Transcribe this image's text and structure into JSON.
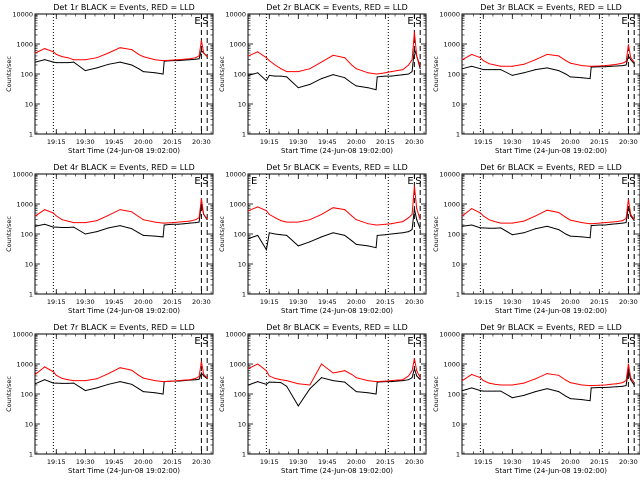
{
  "figure": {
    "ylabel": "Counts/sec",
    "xlabel": "Start Time (24-Jun-08 19:02:00)",
    "x_ticks": [
      "19:15",
      "19:30",
      "19:45",
      "20:00",
      "20:15",
      "20:30"
    ],
    "y_ticks": [
      "1",
      "10",
      "100",
      "1000",
      "10000"
    ],
    "colors": {
      "events": "#000000",
      "lld": "#ff0000",
      "axes": "#000000",
      "background": "#ffffff"
    }
  },
  "chart_data": [
    {
      "type": "line",
      "title": "Det 1r BLACK = Events, RED = LLD",
      "flags": [
        {
          "text": "E"
        },
        {
          "text": "S"
        }
      ],
      "xlim": [
        19.0667,
        20.6
      ],
      "ylim": [
        1,
        10000
      ],
      "yscale": "log",
      "vlines_dotted": [
        19.225,
        20.275
      ],
      "vlines_dashed": [
        20.5,
        20.55
      ],
      "x": [
        19.07,
        19.15,
        19.225,
        19.25,
        19.3,
        19.35,
        19.4,
        19.5,
        19.6,
        19.7,
        19.8,
        19.9,
        19.96,
        20.0,
        20.1,
        20.17,
        20.18,
        20.25,
        20.3,
        20.35,
        20.4,
        20.45,
        20.48,
        20.5,
        20.52,
        20.55
      ],
      "series": [
        {
          "name": "Events",
          "values": [
            250,
            300,
            250,
            240,
            240,
            240,
            250,
            130,
            160,
            210,
            250,
            200,
            150,
            120,
            110,
            100,
            270,
            280,
            280,
            290,
            300,
            310,
            320,
            600,
            500,
            380
          ]
        },
        {
          "name": "LLD",
          "values": [
            500,
            700,
            550,
            450,
            380,
            350,
            300,
            300,
            350,
            500,
            750,
            650,
            450,
            380,
            300,
            280,
            280,
            290,
            300,
            310,
            320,
            350,
            400,
            1300,
            500,
            380
          ]
        }
      ]
    },
    {
      "type": "line",
      "title": "Det 2r BLACK = Events, RED = LLD",
      "flags": [
        {
          "text": "E"
        },
        {
          "text": "S"
        }
      ],
      "xlim": [
        19.0667,
        20.6
      ],
      "ylim": [
        1,
        10000
      ],
      "yscale": "log",
      "vlines_dotted": [
        19.225,
        20.275
      ],
      "vlines_dashed": [
        20.5,
        20.55
      ],
      "x": [
        19.07,
        19.15,
        19.225,
        19.25,
        19.3,
        19.35,
        19.4,
        19.5,
        19.6,
        19.7,
        19.8,
        19.9,
        19.96,
        20.0,
        20.1,
        20.17,
        20.18,
        20.25,
        20.3,
        20.35,
        20.4,
        20.45,
        20.48,
        20.5,
        20.52,
        20.55
      ],
      "series": [
        {
          "name": "Events",
          "values": [
            90,
            110,
            60,
            90,
            85,
            85,
            80,
            35,
            45,
            70,
            95,
            75,
            50,
            40,
            35,
            30,
            80,
            85,
            85,
            90,
            95,
            100,
            120,
            650,
            400,
            150
          ]
        },
        {
          "name": "LLD",
          "values": [
            400,
            550,
            350,
            280,
            200,
            150,
            120,
            120,
            150,
            250,
            420,
            350,
            200,
            150,
            110,
            100,
            100,
            110,
            120,
            130,
            140,
            200,
            300,
            2500,
            400,
            180
          ]
        }
      ]
    },
    {
      "type": "line",
      "title": "Det 3r BLACK = Events, RED = LLD",
      "flags": [
        {
          "text": "E"
        },
        {
          "text": "S"
        }
      ],
      "xlim": [
        19.0667,
        20.6
      ],
      "ylim": [
        1,
        10000
      ],
      "yscale": "log",
      "vlines_dotted": [
        19.225,
        20.275
      ],
      "vlines_dashed": [
        20.5,
        20.55
      ],
      "x": [
        19.07,
        19.15,
        19.225,
        19.25,
        19.3,
        19.35,
        19.4,
        19.5,
        19.6,
        19.7,
        19.8,
        19.9,
        19.96,
        20.0,
        20.1,
        20.17,
        20.18,
        20.25,
        20.3,
        20.35,
        20.4,
        20.45,
        20.48,
        20.5,
        20.52,
        20.55
      ],
      "series": [
        {
          "name": "Events",
          "values": [
            150,
            180,
            150,
            140,
            140,
            140,
            140,
            90,
            110,
            140,
            160,
            130,
            100,
            80,
            75,
            70,
            170,
            175,
            175,
            180,
            185,
            190,
            200,
            400,
            300,
            220
          ]
        },
        {
          "name": "LLD",
          "values": [
            300,
            450,
            350,
            280,
            220,
            200,
            180,
            180,
            210,
            300,
            450,
            400,
            280,
            230,
            190,
            180,
            180,
            185,
            190,
            200,
            210,
            230,
            260,
            950,
            350,
            250
          ]
        }
      ]
    },
    {
      "type": "line",
      "title": "Det 4r BLACK = Events, RED = LLD",
      "flags": [
        {
          "text": "E"
        },
        {
          "text": "S"
        }
      ],
      "xlim": [
        19.0667,
        20.6
      ],
      "ylim": [
        1,
        10000
      ],
      "yscale": "log",
      "vlines_dotted": [
        19.225,
        20.275
      ],
      "vlines_dashed": [
        20.5,
        20.55
      ],
      "x": [
        19.07,
        19.15,
        19.225,
        19.25,
        19.3,
        19.35,
        19.4,
        19.5,
        19.6,
        19.7,
        19.8,
        19.9,
        19.96,
        20.0,
        20.1,
        20.17,
        20.18,
        20.25,
        20.3,
        20.35,
        20.4,
        20.45,
        20.48,
        20.5,
        20.52,
        20.55
      ],
      "series": [
        {
          "name": "Events",
          "values": [
            180,
            210,
            170,
            170,
            165,
            165,
            170,
            100,
            120,
            160,
            190,
            150,
            110,
            90,
            85,
            80,
            200,
            210,
            210,
            220,
            230,
            240,
            250,
            1000,
            450,
            300
          ]
        },
        {
          "name": "LLD",
          "values": [
            400,
            650,
            500,
            400,
            300,
            270,
            240,
            240,
            280,
            420,
            650,
            550,
            380,
            300,
            250,
            230,
            230,
            240,
            250,
            260,
            270,
            300,
            350,
            1500,
            450,
            320
          ]
        }
      ]
    },
    {
      "type": "line",
      "title": "Det 5r BLACK = Events, RED = LLD",
      "flags": [
        {
          "text": "E"
        },
        {
          "text": "E"
        },
        {
          "text": "S"
        }
      ],
      "xlim": [
        19.0667,
        20.6
      ],
      "ylim": [
        1,
        10000
      ],
      "yscale": "log",
      "vlines_dotted": [
        19.225,
        20.275
      ],
      "vlines_dashed": [
        20.5,
        20.55
      ],
      "x": [
        19.07,
        19.15,
        19.225,
        19.25,
        19.3,
        19.35,
        19.4,
        19.5,
        19.6,
        19.7,
        19.8,
        19.9,
        19.96,
        20.0,
        20.1,
        20.17,
        20.18,
        20.25,
        20.3,
        20.35,
        20.4,
        20.45,
        20.48,
        20.5,
        20.52,
        20.55
      ],
      "series": [
        {
          "name": "Events",
          "values": [
            70,
            90,
            30,
            110,
            100,
            95,
            90,
            40,
            55,
            80,
            110,
            90,
            60,
            45,
            40,
            35,
            90,
            95,
            100,
            105,
            110,
            120,
            140,
            700,
            300,
            150
          ]
        },
        {
          "name": "LLD",
          "values": [
            600,
            800,
            600,
            450,
            350,
            280,
            250,
            250,
            300,
            450,
            750,
            650,
            400,
            300,
            220,
            200,
            200,
            210,
            220,
            240,
            260,
            350,
            450,
            4000,
            700,
            300
          ]
        }
      ]
    },
    {
      "type": "line",
      "title": "Det 6r BLACK = Events, RED = LLD",
      "flags": [
        {
          "text": "E"
        },
        {
          "text": "S"
        }
      ],
      "xlim": [
        19.0667,
        20.6
      ],
      "ylim": [
        1,
        10000
      ],
      "yscale": "log",
      "vlines_dotted": [
        19.225,
        20.275
      ],
      "vlines_dashed": [
        20.5,
        20.55
      ],
      "x": [
        19.07,
        19.15,
        19.225,
        19.25,
        19.3,
        19.35,
        19.4,
        19.5,
        19.6,
        19.7,
        19.8,
        19.9,
        19.96,
        20.0,
        20.1,
        20.17,
        20.18,
        20.25,
        20.3,
        20.35,
        20.4,
        20.45,
        20.48,
        20.5,
        20.52,
        20.55
      ],
      "series": [
        {
          "name": "Events",
          "values": [
            180,
            200,
            160,
            160,
            155,
            155,
            160,
            95,
            110,
            150,
            180,
            140,
            100,
            85,
            80,
            75,
            190,
            200,
            200,
            210,
            220,
            230,
            240,
            800,
            400,
            280
          ]
        },
        {
          "name": "LLD",
          "values": [
            400,
            700,
            500,
            400,
            300,
            260,
            230,
            230,
            270,
            400,
            620,
            520,
            360,
            290,
            240,
            220,
            220,
            230,
            240,
            250,
            260,
            280,
            330,
            1400,
            450,
            300
          ]
        }
      ]
    },
    {
      "type": "line",
      "title": "Det 7r BLACK = Events, RED = LLD",
      "flags": [
        {
          "text": "E"
        },
        {
          "text": "S"
        }
      ],
      "xlim": [
        19.0667,
        20.6
      ],
      "ylim": [
        1,
        10000
      ],
      "yscale": "log",
      "vlines_dotted": [
        19.225,
        20.275
      ],
      "vlines_dashed": [
        20.5,
        20.55
      ],
      "x": [
        19.07,
        19.15,
        19.225,
        19.25,
        19.3,
        19.35,
        19.4,
        19.5,
        19.6,
        19.7,
        19.8,
        19.9,
        19.96,
        20.0,
        20.1,
        20.17,
        20.18,
        20.25,
        20.3,
        20.35,
        20.4,
        20.45,
        20.48,
        20.5,
        20.52,
        20.55
      ],
      "series": [
        {
          "name": "Events",
          "values": [
            220,
            300,
            230,
            230,
            225,
            225,
            230,
            130,
            160,
            210,
            260,
            210,
            150,
            120,
            110,
            100,
            260,
            270,
            270,
            280,
            290,
            300,
            310,
            500,
            400,
            320
          ]
        },
        {
          "name": "LLD",
          "values": [
            450,
            800,
            550,
            420,
            330,
            300,
            280,
            280,
            320,
            480,
            750,
            620,
            420,
            340,
            280,
            260,
            260,
            270,
            280,
            290,
            300,
            330,
            380,
            1200,
            450,
            340
          ]
        }
      ]
    },
    {
      "type": "line",
      "title": "Det 8r BLACK = Events, RED = LLD",
      "flags": [
        {
          "text": "E"
        },
        {
          "text": "S"
        }
      ],
      "xlim": [
        19.0667,
        20.6
      ],
      "ylim": [
        1,
        10000
      ],
      "yscale": "log",
      "vlines_dotted": [
        19.225,
        20.275
      ],
      "vlines_dashed": [
        20.5,
        20.55
      ],
      "x": [
        19.07,
        19.15,
        19.225,
        19.25,
        19.3,
        19.35,
        19.4,
        19.5,
        19.6,
        19.7,
        19.8,
        19.9,
        19.96,
        20.0,
        20.1,
        20.17,
        20.18,
        20.25,
        20.3,
        20.35,
        20.4,
        20.45,
        20.48,
        20.5,
        20.52,
        20.55
      ],
      "series": [
        {
          "name": "Events",
          "values": [
            200,
            260,
            210,
            250,
            245,
            240,
            180,
            40,
            150,
            350,
            280,
            250,
            160,
            120,
            110,
            100,
            250,
            260,
            260,
            270,
            280,
            300,
            350,
            700,
            400,
            300
          ]
        },
        {
          "name": "LLD",
          "values": [
            700,
            1000,
            600,
            400,
            330,
            300,
            280,
            220,
            200,
            1000,
            500,
            600,
            450,
            350,
            280,
            260,
            260,
            270,
            280,
            290,
            300,
            400,
            600,
            1500,
            600,
            350
          ]
        }
      ]
    },
    {
      "type": "line",
      "title": "Det 9r BLACK = Events, RED = LLD",
      "flags": [
        {
          "text": "E"
        },
        {
          "text": "S"
        }
      ],
      "xlim": [
        19.0667,
        20.6
      ],
      "ylim": [
        1,
        10000
      ],
      "yscale": "log",
      "vlines_dotted": [
        19.225,
        20.275
      ],
      "vlines_dashed": [
        20.5,
        20.55
      ],
      "x": [
        19.07,
        19.15,
        19.225,
        19.25,
        19.3,
        19.35,
        19.4,
        19.5,
        19.6,
        19.7,
        19.8,
        19.9,
        19.96,
        20.0,
        20.1,
        20.17,
        20.18,
        20.25,
        20.3,
        20.35,
        20.4,
        20.45,
        20.48,
        20.5,
        20.52,
        20.55
      ],
      "series": [
        {
          "name": "Events",
          "values": [
            130,
            160,
            130,
            125,
            125,
            125,
            125,
            75,
            90,
            120,
            150,
            120,
            85,
            70,
            65,
            60,
            160,
            165,
            165,
            170,
            175,
            180,
            190,
            600,
            300,
            200
          ]
        },
        {
          "name": "LLD",
          "values": [
            280,
            450,
            350,
            280,
            230,
            210,
            200,
            200,
            230,
            320,
            480,
            420,
            290,
            240,
            200,
            190,
            190,
            195,
            200,
            210,
            220,
            240,
            280,
            1000,
            350,
            240
          ]
        }
      ]
    }
  ]
}
